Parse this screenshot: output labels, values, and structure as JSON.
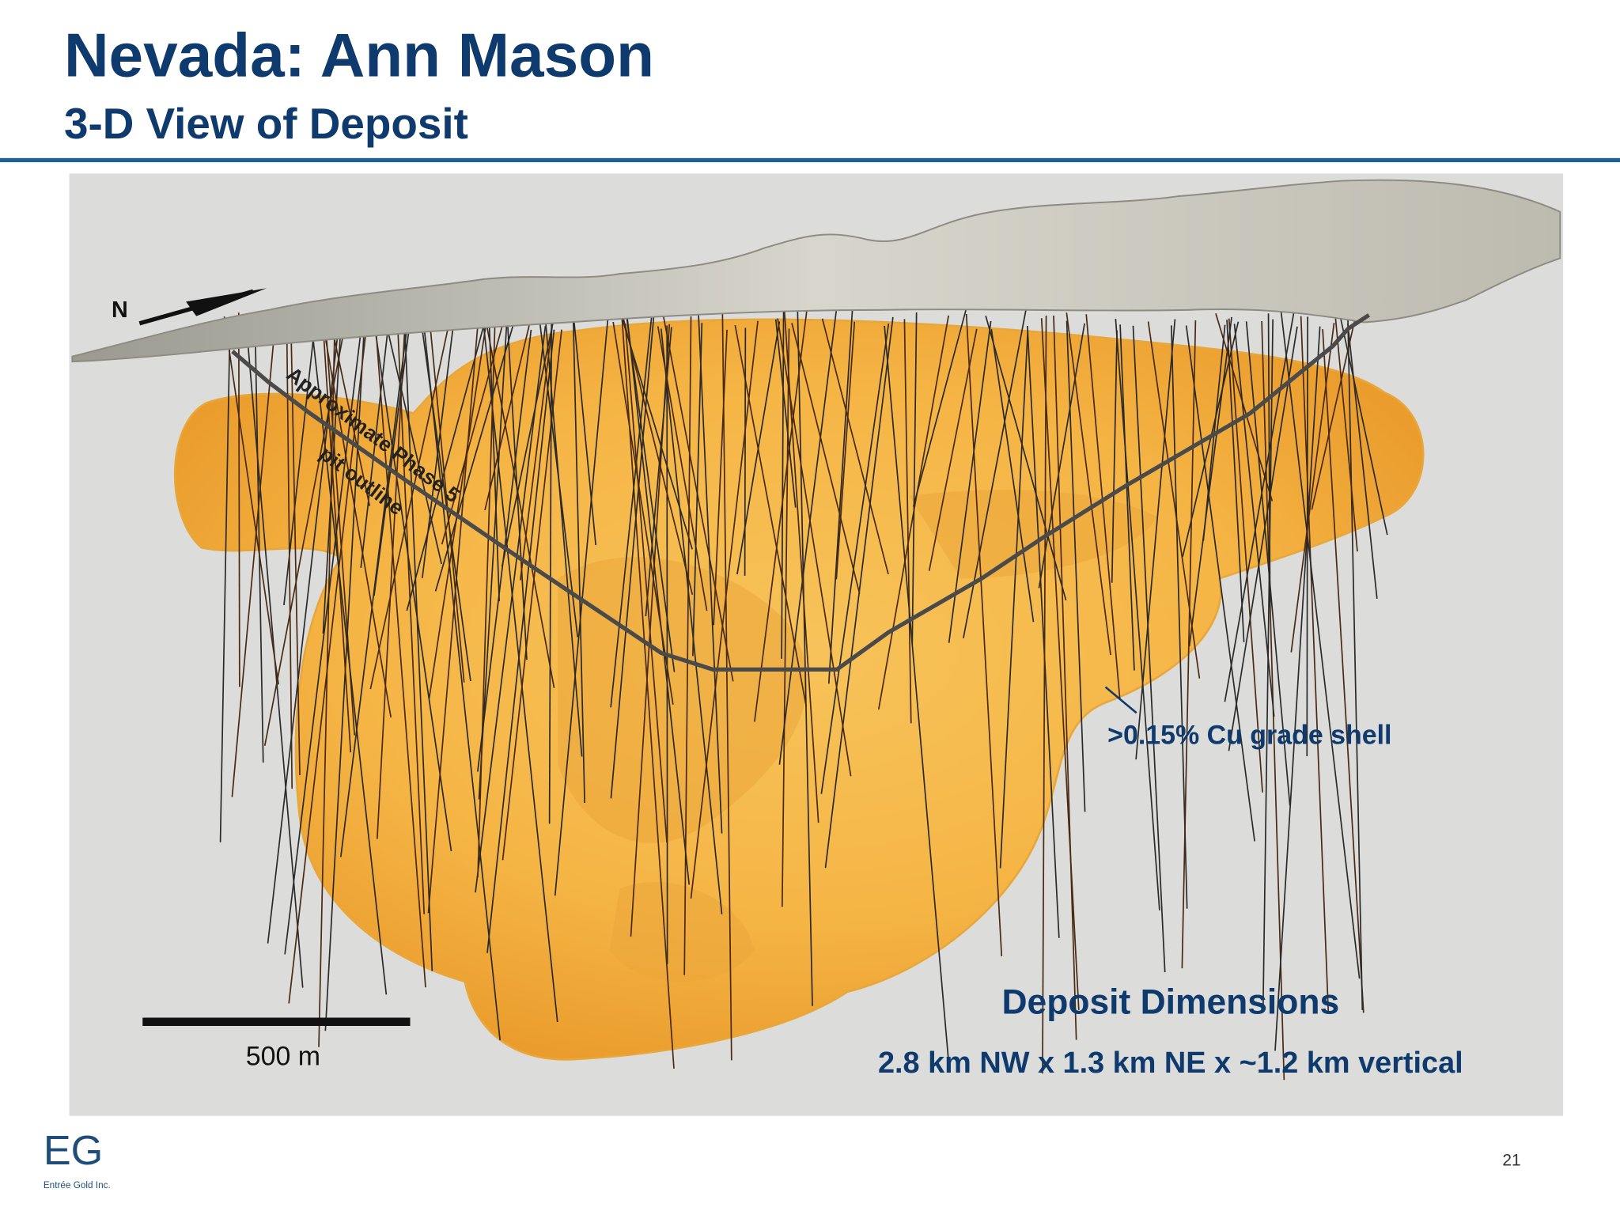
{
  "header": {
    "title": "Nevada: Ann Mason",
    "subtitle": "3-D View of Deposit"
  },
  "figure": {
    "north": "N",
    "pit_label": [
      "Approximate Phase 5",
      "pit outline"
    ],
    "shell_label": ">0.15% Cu grade shell",
    "scale_label": "500 m",
    "dimensions": {
      "title": "Deposit Dimensions",
      "text": "2.8 km NW x 1.3 km NE x ~1.2 km vertical"
    }
  },
  "footer": {
    "logo": "EG",
    "company": "Entrée Gold Inc.",
    "page_number": "21"
  }
}
